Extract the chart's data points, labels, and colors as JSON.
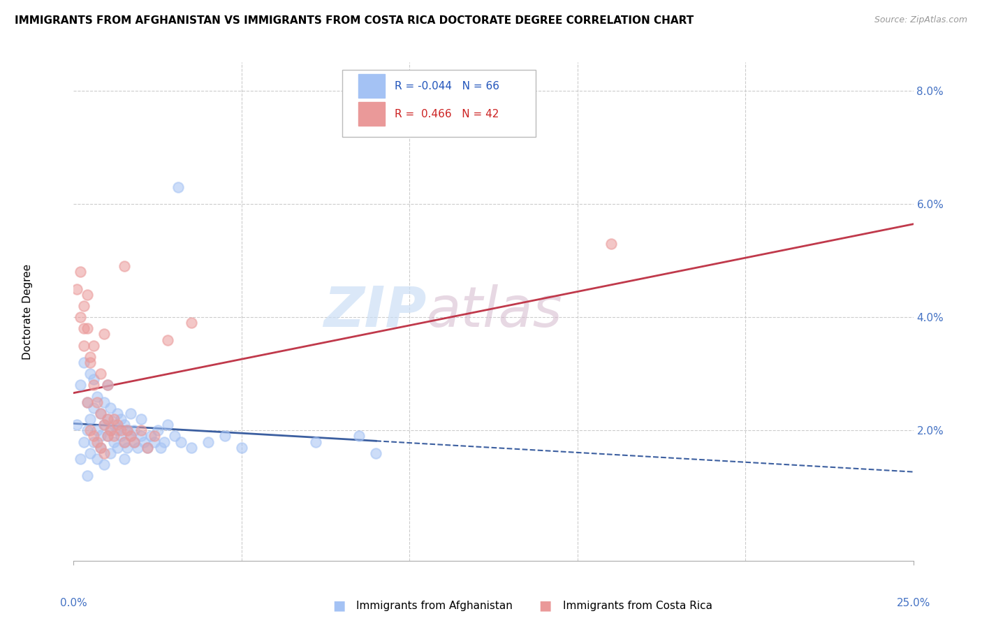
{
  "title": "IMMIGRANTS FROM AFGHANISTAN VS IMMIGRANTS FROM COSTA RICA DOCTORATE DEGREE CORRELATION CHART",
  "source": "Source: ZipAtlas.com",
  "ylabel": "Doctorate Degree",
  "xlim": [
    0.0,
    25.0
  ],
  "ylim": [
    -0.3,
    8.5
  ],
  "legend_blue_r": "-0.044",
  "legend_blue_n": "66",
  "legend_pink_r": " 0.466",
  "legend_pink_n": "42",
  "blue_color": "#a4c2f4",
  "pink_color": "#ea9999",
  "blue_line_color": "#3c5fa0",
  "pink_line_color": "#c0394b",
  "afghanistan_x": [
    0.1,
    0.2,
    0.2,
    0.3,
    0.3,
    0.4,
    0.4,
    0.4,
    0.5,
    0.5,
    0.5,
    0.6,
    0.6,
    0.6,
    0.7,
    0.7,
    0.7,
    0.8,
    0.8,
    0.8,
    0.9,
    0.9,
    0.9,
    1.0,
    1.0,
    1.0,
    1.1,
    1.1,
    1.1,
    1.2,
    1.2,
    1.3,
    1.3,
    1.3,
    1.4,
    1.4,
    1.5,
    1.5,
    1.5,
    1.6,
    1.6,
    1.7,
    1.7,
    1.8,
    1.8,
    1.9,
    2.0,
    2.0,
    2.1,
    2.2,
    2.3,
    2.4,
    2.5,
    2.6,
    2.7,
    2.8,
    3.0,
    3.2,
    3.5,
    4.0,
    4.5,
    5.0,
    3.1,
    7.2,
    8.5,
    9.0
  ],
  "afghanistan_y": [
    2.1,
    2.8,
    1.5,
    3.2,
    1.8,
    2.5,
    1.2,
    2.0,
    2.2,
    3.0,
    1.6,
    2.4,
    1.8,
    2.9,
    2.0,
    1.5,
    2.6,
    1.9,
    2.3,
    1.7,
    2.1,
    2.5,
    1.4,
    2.8,
    1.9,
    2.2,
    2.0,
    1.6,
    2.4,
    2.1,
    1.8,
    2.3,
    1.7,
    2.0,
    1.9,
    2.2,
    1.8,
    2.1,
    1.5,
    2.0,
    1.7,
    1.9,
    2.3,
    1.8,
    2.0,
    1.7,
    1.9,
    2.2,
    1.8,
    1.7,
    1.9,
    1.8,
    2.0,
    1.7,
    1.8,
    2.1,
    1.9,
    1.8,
    1.7,
    1.8,
    1.9,
    1.7,
    6.3,
    1.8,
    1.9,
    1.6
  ],
  "costarica_x": [
    0.1,
    0.2,
    0.3,
    0.3,
    0.4,
    0.4,
    0.5,
    0.5,
    0.6,
    0.6,
    0.7,
    0.7,
    0.8,
    0.8,
    0.9,
    0.9,
    1.0,
    1.0,
    1.1,
    1.2,
    1.3,
    1.4,
    1.5,
    1.5,
    1.6,
    1.7,
    1.8,
    2.0,
    2.2,
    2.4,
    0.3,
    0.5,
    0.6,
    0.8,
    1.0,
    16.0,
    2.8,
    3.5,
    1.2,
    0.9,
    0.4,
    0.2
  ],
  "costarica_y": [
    4.5,
    4.8,
    4.2,
    3.5,
    3.8,
    2.5,
    3.2,
    2.0,
    2.8,
    1.9,
    2.5,
    1.8,
    2.3,
    1.7,
    2.1,
    1.6,
    1.9,
    2.2,
    2.0,
    1.9,
    2.1,
    2.0,
    1.8,
    4.9,
    2.0,
    1.9,
    1.8,
    2.0,
    1.7,
    1.9,
    3.8,
    3.3,
    3.5,
    3.0,
    2.8,
    5.3,
    3.6,
    3.9,
    2.2,
    3.7,
    4.4,
    4.0
  ]
}
